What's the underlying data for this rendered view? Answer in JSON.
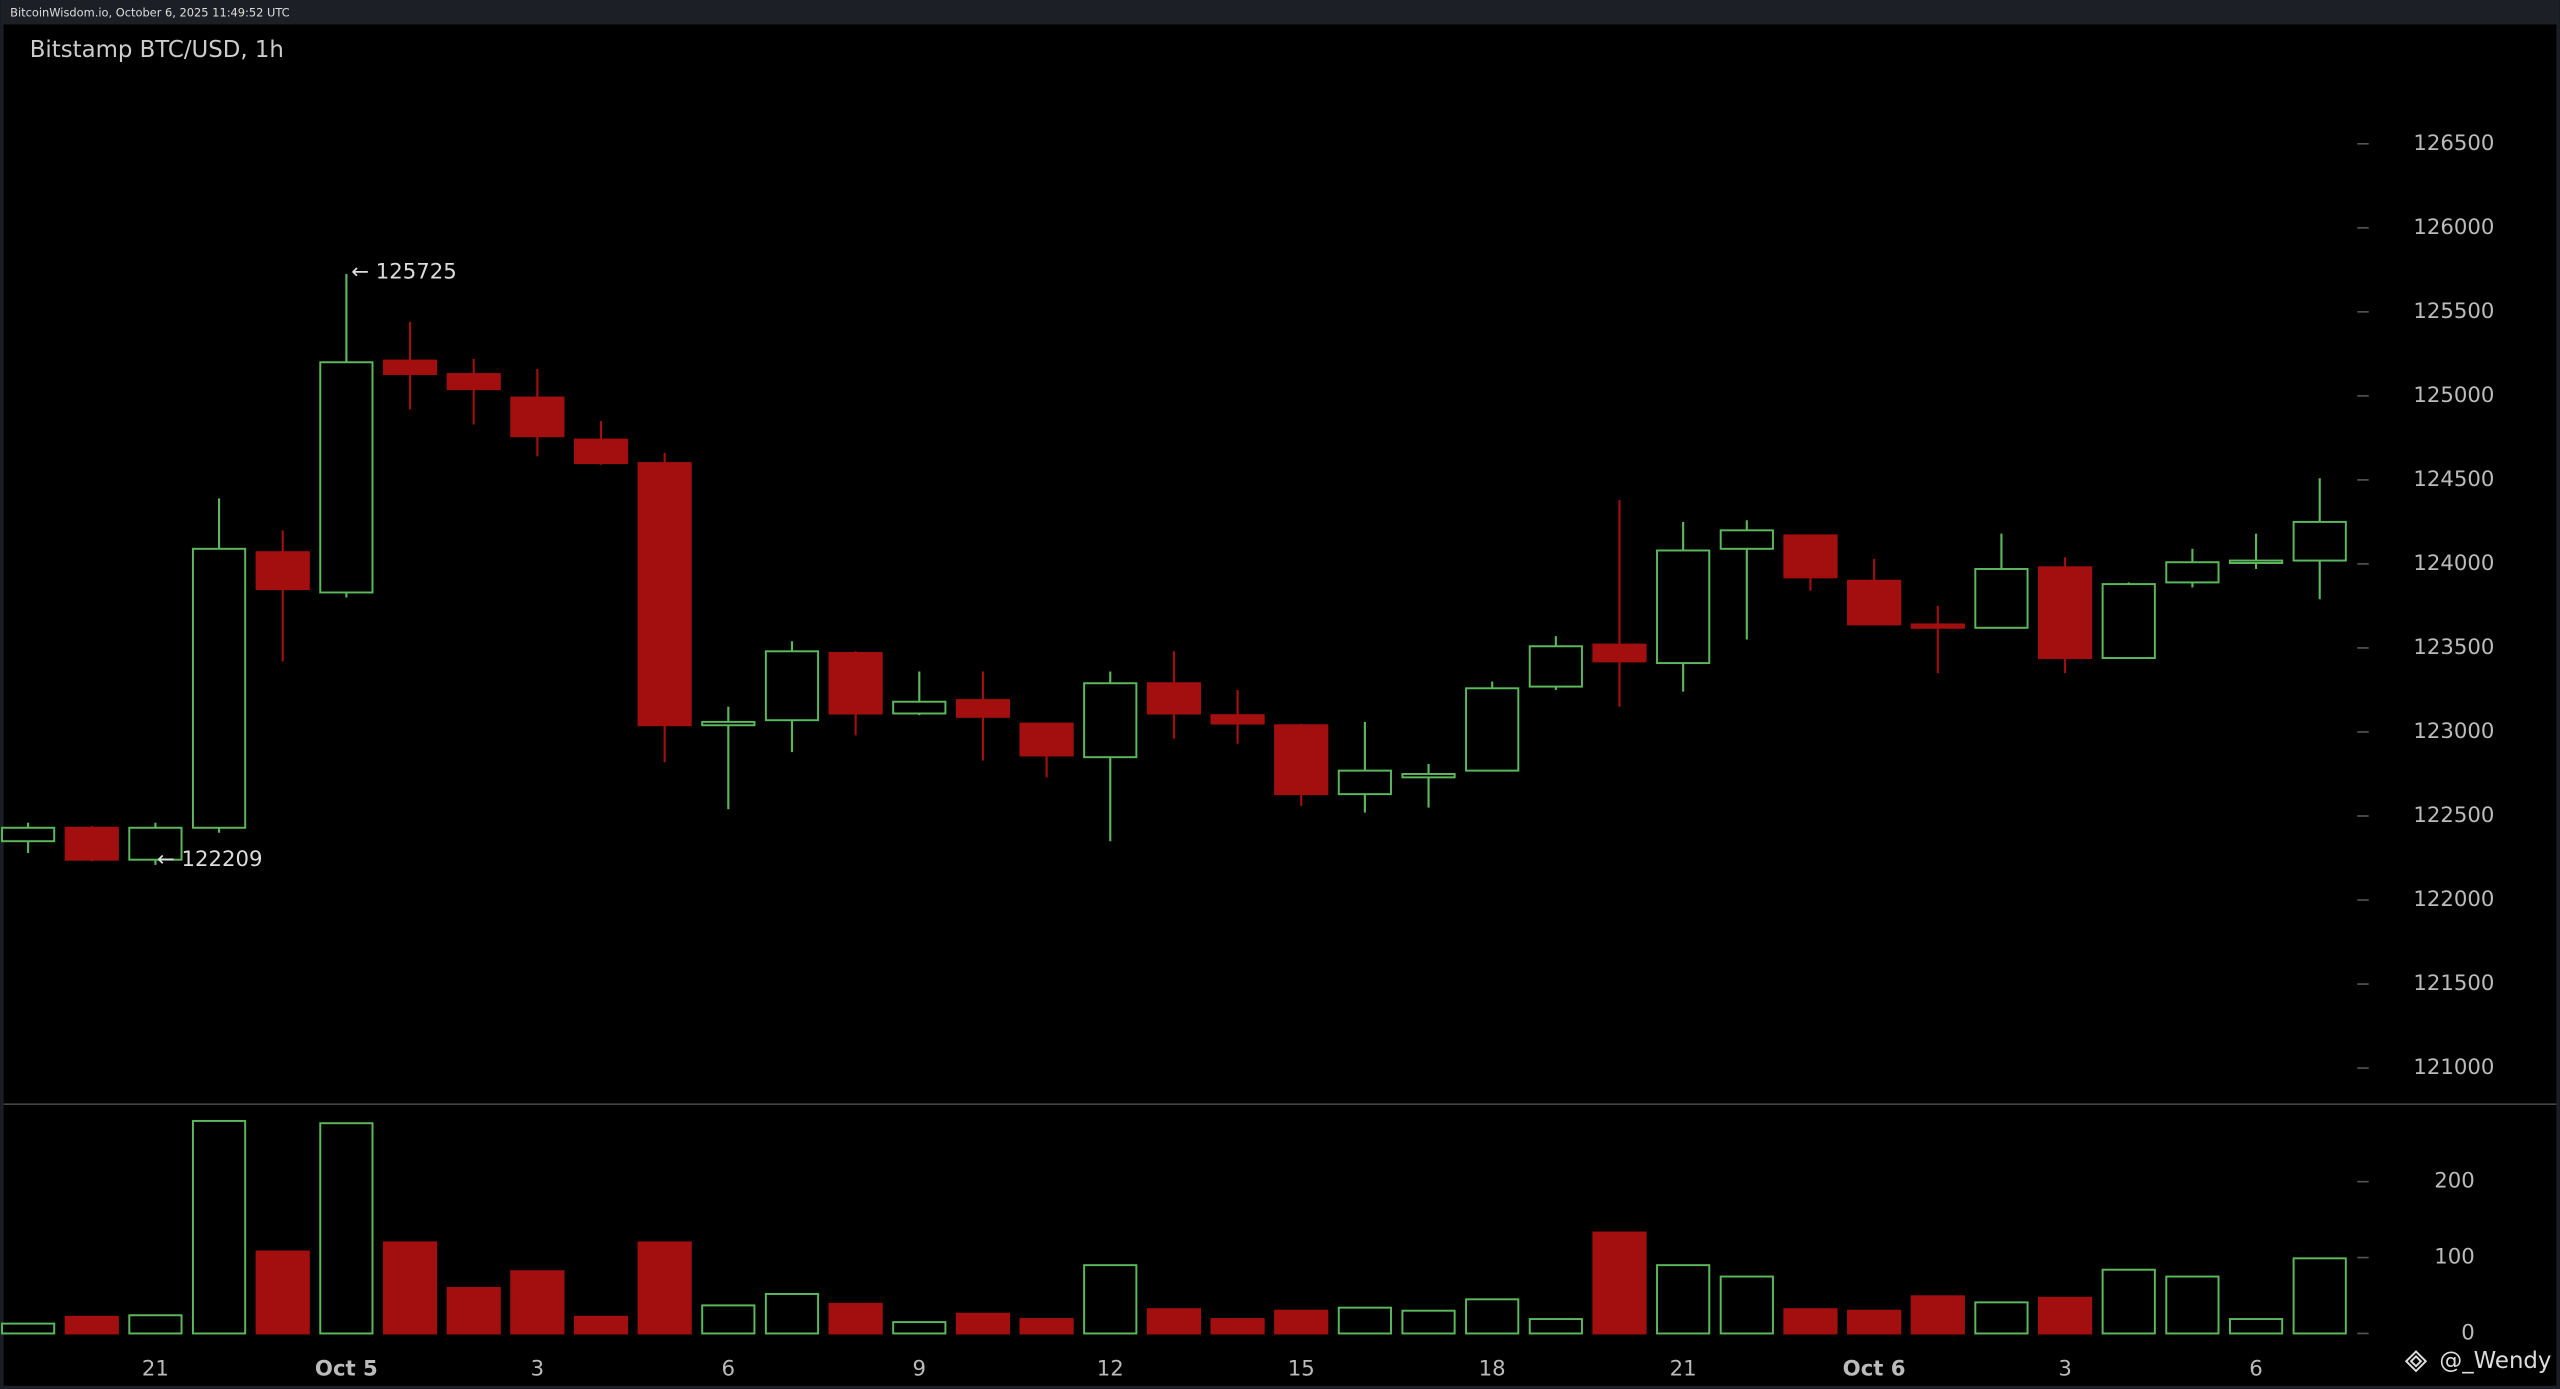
{
  "header": "BitcoinWisdom.io, October 6, 2025 11:49:52 UTC",
  "watermark": "@_Wendy",
  "chart_data": {
    "type": "candlestick",
    "title": "Bitstamp BTC/USD, 1h",
    "categories": [
      null,
      null,
      "21",
      null,
      null,
      "Oct 5",
      null,
      null,
      "3",
      null,
      null,
      "6",
      null,
      null,
      "9",
      null,
      null,
      "12",
      null,
      null,
      "15",
      null,
      null,
      "18",
      null,
      null,
      "21",
      null,
      null,
      "Oct 6",
      null,
      null,
      "3",
      null,
      null,
      "6",
      null
    ],
    "open": [
      122350,
      122430,
      122240,
      122430,
      124070,
      123830,
      125210,
      125130,
      124990,
      124740,
      124600,
      123040,
      123070,
      123470,
      123110,
      123190,
      123050,
      122850,
      123290,
      123100,
      123040,
      122630,
      122730,
      122770,
      123270,
      123520,
      123410,
      124090,
      124170,
      123900,
      123640,
      123620,
      123980,
      123440,
      123890,
      124010,
      124020
    ],
    "high": [
      122460,
      122440,
      122460,
      124390,
      124200,
      125725,
      125440,
      125220,
      125160,
      124850,
      124660,
      123150,
      123540,
      123480,
      123360,
      123360,
      123050,
      123360,
      123480,
      123250,
      123050,
      123060,
      122810,
      123300,
      123570,
      124380,
      124250,
      124260,
      124170,
      124030,
      123750,
      124180,
      124040,
      123890,
      124090,
      124180,
      124510
    ],
    "low": [
      122280,
      122230,
      122209,
      122400,
      123420,
      123800,
      124920,
      124830,
      124640,
      124590,
      122820,
      122540,
      122880,
      122980,
      123100,
      122830,
      122730,
      122350,
      122960,
      122930,
      122560,
      122520,
      122550,
      122770,
      123250,
      123150,
      123240,
      123550,
      123840,
      123640,
      123350,
      123620,
      123350,
      123440,
      123860,
      123970,
      123790
    ],
    "close": [
      122430,
      122240,
      122430,
      124090,
      123850,
      125200,
      125130,
      125040,
      124760,
      124600,
      123040,
      123060,
      123480,
      123110,
      123180,
      123090,
      122860,
      123290,
      123110,
      123050,
      122630,
      122770,
      122750,
      123260,
      123510,
      123420,
      124080,
      124200,
      123920,
      123640,
      123620,
      123970,
      123440,
      123880,
      124010,
      124020,
      124250
    ],
    "max_label": "← 125725",
    "min_label": "← 122209",
    "up_color": "#5cb85c",
    "down_color": "#a30f0f",
    "ylim": [
      120790,
      127210
    ],
    "yticks": [
      121000,
      121500,
      122000,
      122500,
      123000,
      123500,
      124000,
      124500,
      125000,
      125500,
      126000,
      126500
    ],
    "volume": {
      "values": [
        13,
        22,
        24,
        280,
        108,
        277,
        120,
        60,
        82,
        22,
        120,
        37,
        52,
        39,
        15,
        26,
        19,
        90,
        32,
        19,
        30,
        34,
        30,
        45,
        19,
        133,
        90,
        75,
        32,
        30,
        49,
        41,
        47,
        84,
        75,
        19,
        99
      ],
      "ylim": [
        -28,
        301
      ],
      "yticks": [
        0,
        100,
        200
      ]
    }
  }
}
